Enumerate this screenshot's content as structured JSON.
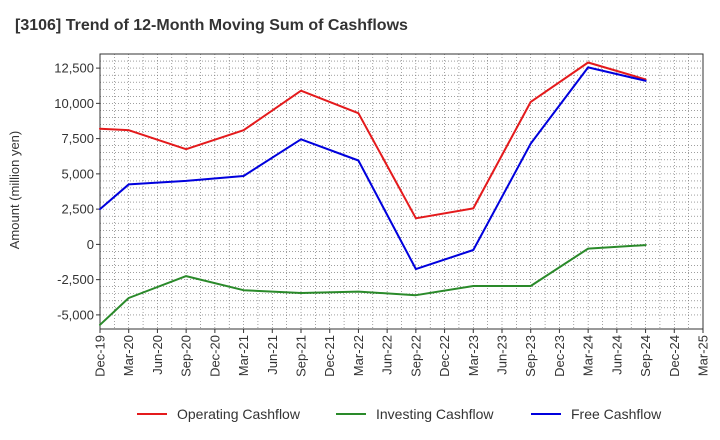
{
  "chart_data": {
    "type": "line",
    "title": "[3106]  Trend of 12-Month Moving Sum of Cashflows",
    "xlabel": "",
    "ylabel": "Amount (million yen)",
    "categories": [
      "Dec-19",
      "Mar-20",
      "Jun-20",
      "Sep-20",
      "Dec-20",
      "Mar-21",
      "Jun-21",
      "Sep-21",
      "Dec-21",
      "Mar-22",
      "Jun-22",
      "Sep-22",
      "Dec-22",
      "Mar-23",
      "Jun-23",
      "Sep-23",
      "Dec-23",
      "Mar-24",
      "Jun-24",
      "Sep-24",
      "Dec-24",
      "Mar-25"
    ],
    "x_tick_labels": [
      "Dec-19",
      "Mar-20",
      "Jun-20",
      "Sep-20",
      "Dec-20",
      "Mar-21",
      "Jun-21",
      "Sep-21",
      "Dec-21",
      "Mar-22",
      "Jun-22",
      "Sep-22",
      "Dec-22",
      "Mar-23",
      "Jun-23",
      "Sep-23",
      "Dec-23",
      "Mar-24",
      "Jun-24",
      "Sep-24",
      "Dec-24",
      "Mar-25"
    ],
    "y_ticks": [
      12500,
      10000,
      7500,
      5000,
      2500,
      0,
      -2500,
      -5000
    ],
    "y_tick_labels": [
      "12,500",
      "10,000",
      "7,500",
      "5,000",
      "2,500",
      "0",
      "-2,500",
      "-5,000"
    ],
    "ylim": [
      -6000,
      13500
    ],
    "grid": true,
    "legend_position": "bottom",
    "series": [
      {
        "name": "Operating Cashflow",
        "color": "#e41a1c",
        "points": [
          {
            "x": "Dec-19",
            "y": 8200
          },
          {
            "x": "Mar-20",
            "y": 8100
          },
          {
            "x": "Sep-20",
            "y": 6750
          },
          {
            "x": "Mar-21",
            "y": 8100
          },
          {
            "x": "Sep-21",
            "y": 10900
          },
          {
            "x": "Mar-22",
            "y": 9300
          },
          {
            "x": "Sep-22",
            "y": 1850
          },
          {
            "x": "Mar-23",
            "y": 2550
          },
          {
            "x": "Sep-23",
            "y": 10100
          },
          {
            "x": "Mar-24",
            "y": 12900
          },
          {
            "x": "Sep-24",
            "y": 11700
          }
        ]
      },
      {
        "name": "Investing Cashflow",
        "color": "#2a8a2a",
        "points": [
          {
            "x": "Dec-19",
            "y": -5700
          },
          {
            "x": "Mar-20",
            "y": -3800
          },
          {
            "x": "Sep-20",
            "y": -2250
          },
          {
            "x": "Mar-21",
            "y": -3250
          },
          {
            "x": "Sep-21",
            "y": -3450
          },
          {
            "x": "Mar-22",
            "y": -3350
          },
          {
            "x": "Sep-22",
            "y": -3600
          },
          {
            "x": "Mar-23",
            "y": -2950
          },
          {
            "x": "Sep-23",
            "y": -2950
          },
          {
            "x": "Mar-24",
            "y": -300
          },
          {
            "x": "Sep-24",
            "y": -50
          }
        ]
      },
      {
        "name": "Free Cashflow",
        "color": "#0000dd",
        "points": [
          {
            "x": "Dec-19",
            "y": 2500
          },
          {
            "x": "Mar-20",
            "y": 4250
          },
          {
            "x": "Sep-20",
            "y": 4500
          },
          {
            "x": "Mar-21",
            "y": 4850
          },
          {
            "x": "Sep-21",
            "y": 7450
          },
          {
            "x": "Mar-22",
            "y": 5950
          },
          {
            "x": "Sep-22",
            "y": -1750
          },
          {
            "x": "Mar-23",
            "y": -400
          },
          {
            "x": "Sep-23",
            "y": 7150
          },
          {
            "x": "Mar-24",
            "y": 12550
          },
          {
            "x": "Sep-24",
            "y": 11600
          }
        ]
      }
    ]
  }
}
